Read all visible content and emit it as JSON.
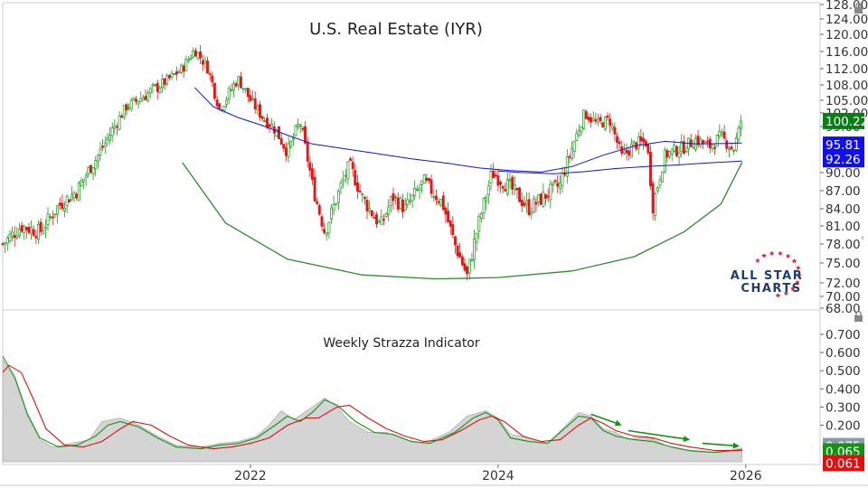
{
  "chart_data": [
    {
      "type": "candlestick",
      "title": "U.S. Real Estate (IYR)",
      "y_ticks": [
        "128.00",
        "124.00",
        "120.00",
        "116.00",
        "112.00",
        "108.00",
        "105.00",
        "102.00",
        "99.00",
        "90.00",
        "87.00",
        "84.00",
        "81.00",
        "78.00",
        "75.00",
        "72.00",
        "70.00",
        "68.00"
      ],
      "ylim": [
        68,
        128
      ],
      "x_tick_labels": [
        "2022",
        "2024",
        "2026"
      ],
      "last_price": {
        "label": "100.22",
        "value": 100.22,
        "color": "#0a7d16"
      },
      "moving_averages": [
        {
          "name": "short MA",
          "last_label": "95.81",
          "last_value": 95.81,
          "color": "#1010ee",
          "points": [
            [
              2021.55,
              107.5
            ],
            [
              2021.7,
              103.5
            ],
            [
              2021.9,
              101.0
            ],
            [
              2022.1,
              99.2
            ],
            [
              2022.3,
              97.3
            ],
            [
              2022.5,
              95.6
            ],
            [
              2022.75,
              94.7
            ],
            [
              2023.0,
              93.8
            ],
            [
              2023.3,
              92.7
            ],
            [
              2023.6,
              91.8
            ],
            [
              2023.85,
              90.9
            ],
            [
              2024.1,
              90.4
            ],
            [
              2024.35,
              90.1
            ],
            [
              2024.6,
              91.2
            ],
            [
              2024.85,
              93.4
            ],
            [
              2025.1,
              95.2
            ],
            [
              2025.35,
              96.1
            ],
            [
              2025.6,
              95.6
            ],
            [
              2025.85,
              95.7
            ],
            [
              2025.97,
              95.81
            ]
          ]
        },
        {
          "name": "long MA",
          "last_label": "92.26",
          "last_value": 92.26,
          "color": "#1010ee",
          "points": [
            [
              2024.0,
              90.3
            ],
            [
              2024.2,
              90.0
            ],
            [
              2024.45,
              89.8
            ],
            [
              2024.7,
              90.2
            ],
            [
              2024.95,
              90.8
            ],
            [
              2025.2,
              91.2
            ],
            [
              2025.45,
              91.5
            ],
            [
              2025.7,
              91.9
            ],
            [
              2025.97,
              92.26
            ]
          ]
        }
      ],
      "annotation_arc": {
        "shape": "rounding bottom",
        "color": "#2e8b2e",
        "points": [
          [
            2021.45,
            92.0
          ],
          [
            2021.8,
            81.5
          ],
          [
            2022.3,
            75.6
          ],
          [
            2022.9,
            73.2
          ],
          [
            2023.5,
            72.6
          ],
          [
            2024.0,
            72.8
          ],
          [
            2024.6,
            73.8
          ],
          [
            2025.1,
            76.0
          ],
          [
            2025.5,
            80.0
          ],
          [
            2025.8,
            84.8
          ],
          [
            2025.97,
            92.0
          ]
        ]
      },
      "candles_shape": [
        [
          2020.0,
          78.0
        ],
        [
          2020.15,
          81.0
        ],
        [
          2020.3,
          80.0
        ],
        [
          2020.45,
          84.5
        ],
        [
          2020.6,
          87.0
        ],
        [
          2020.75,
          92.5
        ],
        [
          2020.9,
          99.0
        ],
        [
          2021.0,
          103.5
        ],
        [
          2021.15,
          106.0
        ],
        [
          2021.3,
          108.5
        ],
        [
          2021.45,
          112.0
        ],
        [
          2021.55,
          116.5
        ],
        [
          2021.65,
          112.5
        ],
        [
          2021.75,
          103.0
        ],
        [
          2021.9,
          109.5
        ],
        [
          2022.0,
          105.0
        ],
        [
          2022.1,
          101.0
        ],
        [
          2022.2,
          98.5
        ],
        [
          2022.3,
          94.0
        ],
        [
          2022.4,
          100.0
        ],
        [
          2022.5,
          88.0
        ],
        [
          2022.6,
          80.0
        ],
        [
          2022.7,
          86.0
        ],
        [
          2022.8,
          91.5
        ],
        [
          2022.9,
          86.0
        ],
        [
          2023.05,
          81.0
        ],
        [
          2023.15,
          86.0
        ],
        [
          2023.25,
          84.0
        ],
        [
          2023.4,
          88.5
        ],
        [
          2023.55,
          85.0
        ],
        [
          2023.65,
          78.0
        ],
        [
          2023.75,
          73.0
        ],
        [
          2023.85,
          82.0
        ],
        [
          2023.95,
          90.0
        ],
        [
          2024.1,
          87.5
        ],
        [
          2024.25,
          84.0
        ],
        [
          2024.4,
          86.5
        ],
        [
          2024.5,
          88.0
        ],
        [
          2024.6,
          95.0
        ],
        [
          2024.7,
          102.0
        ],
        [
          2024.8,
          99.5
        ],
        [
          2024.9,
          100.5
        ],
        [
          2025.0,
          93.0
        ],
        [
          2025.1,
          95.5
        ],
        [
          2025.2,
          96.0
        ],
        [
          2025.25,
          84.5
        ],
        [
          2025.35,
          93.5
        ],
        [
          2025.5,
          95.0
        ],
        [
          2025.6,
          96.5
        ],
        [
          2025.7,
          95.0
        ],
        [
          2025.8,
          97.0
        ],
        [
          2025.9,
          94.5
        ],
        [
          2025.97,
          100.22
        ]
      ]
    },
    {
      "type": "line",
      "title": "Weekly Strazza Indicator",
      "y_ticks": [
        "0.700",
        "0.600",
        "0.500",
        "0.400",
        "0.300",
        "0.200"
      ],
      "ylim": [
        0.0,
        0.76
      ],
      "series": [
        {
          "name": "gray area",
          "color": "#bdbdbd",
          "last_label": "0.075",
          "last_value": 0.075,
          "points": [
            [
              2020.0,
              0.56
            ],
            [
              2020.1,
              0.45
            ],
            [
              2020.2,
              0.25
            ],
            [
              2020.3,
              0.12
            ],
            [
              2020.4,
              0.08
            ],
            [
              2020.55,
              0.1
            ],
            [
              2020.7,
              0.12
            ],
            [
              2020.8,
              0.22
            ],
            [
              2020.95,
              0.24
            ],
            [
              2021.1,
              0.2
            ],
            [
              2021.25,
              0.14
            ],
            [
              2021.4,
              0.09
            ],
            [
              2021.6,
              0.08
            ],
            [
              2021.75,
              0.1
            ],
            [
              2021.9,
              0.11
            ],
            [
              2022.05,
              0.14
            ],
            [
              2022.15,
              0.2
            ],
            [
              2022.25,
              0.28
            ],
            [
              2022.35,
              0.23
            ],
            [
              2022.5,
              0.3
            ],
            [
              2022.6,
              0.35
            ],
            [
              2022.7,
              0.3
            ],
            [
              2022.8,
              0.22
            ],
            [
              2022.95,
              0.16
            ],
            [
              2023.1,
              0.16
            ],
            [
              2023.25,
              0.12
            ],
            [
              2023.4,
              0.1
            ],
            [
              2023.6,
              0.16
            ],
            [
              2023.75,
              0.25
            ],
            [
              2023.9,
              0.28
            ],
            [
              2024.0,
              0.24
            ],
            [
              2024.1,
              0.15
            ],
            [
              2024.25,
              0.13
            ],
            [
              2024.4,
              0.1
            ],
            [
              2024.55,
              0.2
            ],
            [
              2024.65,
              0.27
            ],
            [
              2024.75,
              0.25
            ],
            [
              2024.85,
              0.18
            ],
            [
              2024.95,
              0.16
            ],
            [
              2025.05,
              0.12
            ],
            [
              2025.2,
              0.14
            ],
            [
              2025.35,
              0.09
            ],
            [
              2025.5,
              0.06
            ],
            [
              2025.65,
              0.05
            ],
            [
              2025.8,
              0.05
            ],
            [
              2025.97,
              0.075
            ]
          ]
        },
        {
          "name": "green line",
          "color": "#129412",
          "last_label": "0.065",
          "last_value": 0.065,
          "points": [
            [
              2020.0,
              0.58
            ],
            [
              2020.1,
              0.46
            ],
            [
              2020.2,
              0.26
            ],
            [
              2020.3,
              0.13
            ],
            [
              2020.45,
              0.08
            ],
            [
              2020.6,
              0.09
            ],
            [
              2020.75,
              0.14
            ],
            [
              2020.85,
              0.2
            ],
            [
              2020.95,
              0.22
            ],
            [
              2021.1,
              0.19
            ],
            [
              2021.25,
              0.13
            ],
            [
              2021.4,
              0.08
            ],
            [
              2021.6,
              0.07
            ],
            [
              2021.75,
              0.09
            ],
            [
              2021.9,
              0.1
            ],
            [
              2022.05,
              0.13
            ],
            [
              2022.2,
              0.2
            ],
            [
              2022.3,
              0.25
            ],
            [
              2022.4,
              0.22
            ],
            [
              2022.5,
              0.27
            ],
            [
              2022.6,
              0.34
            ],
            [
              2022.7,
              0.31
            ],
            [
              2022.85,
              0.22
            ],
            [
              2023.0,
              0.16
            ],
            [
              2023.15,
              0.15
            ],
            [
              2023.3,
              0.11
            ],
            [
              2023.45,
              0.1
            ],
            [
              2023.65,
              0.16
            ],
            [
              2023.8,
              0.24
            ],
            [
              2023.9,
              0.27
            ],
            [
              2024.0,
              0.23
            ],
            [
              2024.1,
              0.13
            ],
            [
              2024.25,
              0.11
            ],
            [
              2024.4,
              0.1
            ],
            [
              2024.55,
              0.19
            ],
            [
              2024.65,
              0.25
            ],
            [
              2024.75,
              0.24
            ],
            [
              2024.85,
              0.17
            ],
            [
              2024.95,
              0.14
            ],
            [
              2025.1,
              0.12
            ],
            [
              2025.25,
              0.11
            ],
            [
              2025.4,
              0.08
            ],
            [
              2025.55,
              0.06
            ],
            [
              2025.75,
              0.05
            ],
            [
              2025.97,
              0.065
            ]
          ]
        },
        {
          "name": "red line",
          "color": "#e01010",
          "last_label": "0.061",
          "last_value": 0.061,
          "points": [
            [
              2020.0,
              0.49
            ],
            [
              2020.05,
              0.53
            ],
            [
              2020.15,
              0.49
            ],
            [
              2020.25,
              0.34
            ],
            [
              2020.35,
              0.18
            ],
            [
              2020.5,
              0.09
            ],
            [
              2020.65,
              0.08
            ],
            [
              2020.8,
              0.11
            ],
            [
              2020.95,
              0.18
            ],
            [
              2021.05,
              0.22
            ],
            [
              2021.2,
              0.2
            ],
            [
              2021.35,
              0.14
            ],
            [
              2021.5,
              0.09
            ],
            [
              2021.7,
              0.07
            ],
            [
              2021.85,
              0.08
            ],
            [
              2022.0,
              0.1
            ],
            [
              2022.15,
              0.13
            ],
            [
              2022.3,
              0.2
            ],
            [
              2022.45,
              0.24
            ],
            [
              2022.55,
              0.24
            ],
            [
              2022.7,
              0.3
            ],
            [
              2022.8,
              0.31
            ],
            [
              2022.95,
              0.24
            ],
            [
              2023.1,
              0.18
            ],
            [
              2023.25,
              0.14
            ],
            [
              2023.4,
              0.11
            ],
            [
              2023.55,
              0.12
            ],
            [
              2023.7,
              0.17
            ],
            [
              2023.85,
              0.23
            ],
            [
              2023.95,
              0.25
            ],
            [
              2024.05,
              0.22
            ],
            [
              2024.2,
              0.14
            ],
            [
              2024.35,
              0.11
            ],
            [
              2024.5,
              0.12
            ],
            [
              2024.65,
              0.2
            ],
            [
              2024.75,
              0.24
            ],
            [
              2024.85,
              0.21
            ],
            [
              2024.95,
              0.17
            ],
            [
              2025.1,
              0.14
            ],
            [
              2025.25,
              0.13
            ],
            [
              2025.4,
              0.1
            ],
            [
              2025.55,
              0.08
            ],
            [
              2025.75,
              0.06
            ],
            [
              2025.97,
              0.061
            ]
          ]
        }
      ],
      "trend_arrows": [
        {
          "from": [
            2024.75,
            0.26
          ],
          "to": [
            2025.0,
            0.2
          ],
          "color": "#129412"
        },
        {
          "from": [
            2025.05,
            0.17
          ],
          "to": [
            2025.55,
            0.12
          ],
          "color": "#129412"
        },
        {
          "from": [
            2025.65,
            0.1
          ],
          "to": [
            2025.95,
            0.085
          ],
          "color": "#129412"
        }
      ]
    }
  ],
  "logo": {
    "line1": "ALL STAR",
    "line2": "CHARTS",
    "star_color": "#d42030",
    "text_color": "#1f3e6e"
  }
}
